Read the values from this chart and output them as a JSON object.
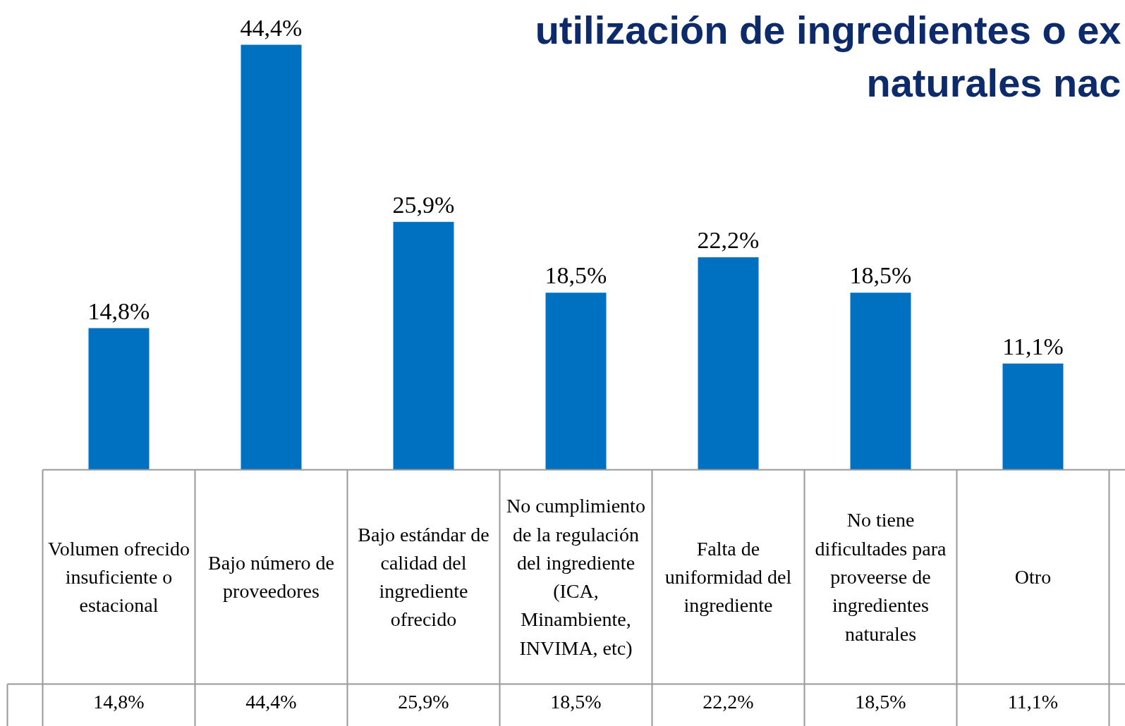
{
  "chart_data": {
    "type": "bar",
    "title": "utilización de ingredientes o ex\nnaturales nac",
    "categories": [
      "Volumen ofrecido insuficiente o estacional",
      "Bajo número de proveedores",
      "Bajo estándar de calidad del ingrediente ofrecido",
      "No cumplimiento de la regulación del ingrediente (ICA, Minambiente, INVIMA, etc)",
      "Falta de uniformidad del ingrediente",
      "No tiene dificultades para proveerse de ingredientes naturales",
      "Otro"
    ],
    "values": [
      14.8,
      44.4,
      25.9,
      18.5,
      22.2,
      18.5,
      11.1
    ],
    "value_labels": [
      "14,8%",
      "44,4%",
      "25,9%",
      "18,5%",
      "22,2%",
      "18,5%",
      "11,1%"
    ],
    "color": "#0070c0"
  }
}
